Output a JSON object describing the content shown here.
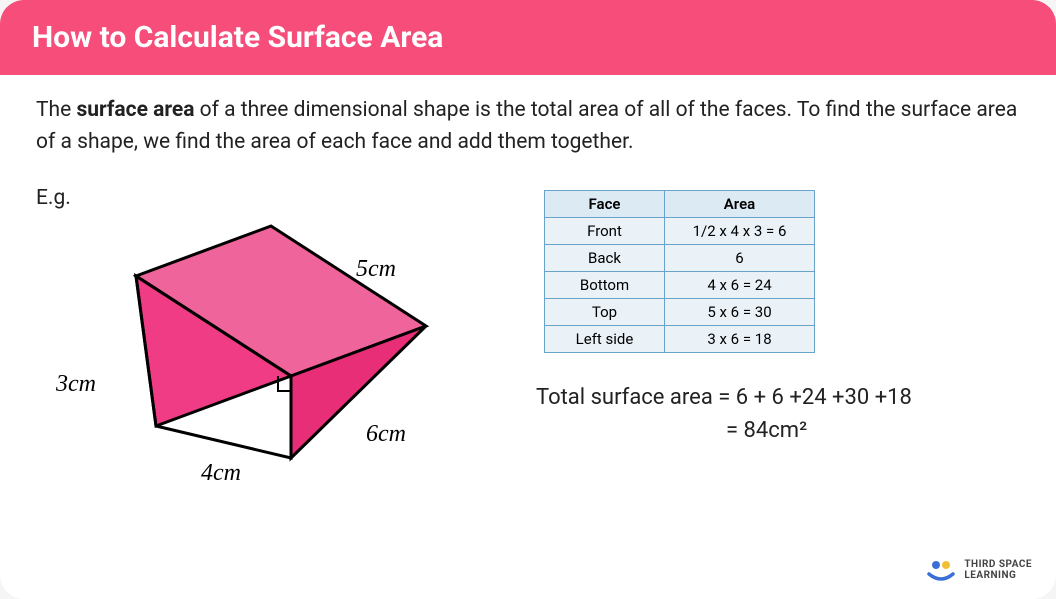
{
  "header": {
    "title": "How to Calculate Surface Area",
    "bg": "#f64d7b"
  },
  "intro": {
    "pre": "The ",
    "bold": "surface area",
    "post": " of a three dimensional shape is the total area of all of the faces. To find the surface area of a shape, we find the area of each face and add them together."
  },
  "eg_label": "E.g.",
  "prism": {
    "fill_top": "#ef649a",
    "fill_right": "#e72e77",
    "fill_front": "#f03c84",
    "stroke": "#000000",
    "dims": {
      "d5": "5cm",
      "d3": "3cm",
      "d4": "4cm",
      "d6": "6cm"
    }
  },
  "table": {
    "border_color": "#6aa3c9",
    "header_bg": "#dceaf4",
    "row_bg": "#eaf2f8",
    "headers": [
      "Face",
      "Area"
    ],
    "rows": [
      [
        "Front",
        "1/2 x 4 x 3 = 6"
      ],
      [
        "Back",
        "6"
      ],
      [
        "Bottom",
        "4 x 6 = 24"
      ],
      [
        "Top",
        "5 x 6 = 30"
      ],
      [
        "Left side",
        "3 x 6 = 18"
      ]
    ]
  },
  "totals": {
    "line1": "Total surface area = 6 + 6 +24 +30 +18",
    "line2": "= 84cm²"
  },
  "logo": {
    "text1": "THIRD SPACE",
    "text2": "LEARNING",
    "blue": "#3b6fd6",
    "yellow": "#f0c233"
  }
}
